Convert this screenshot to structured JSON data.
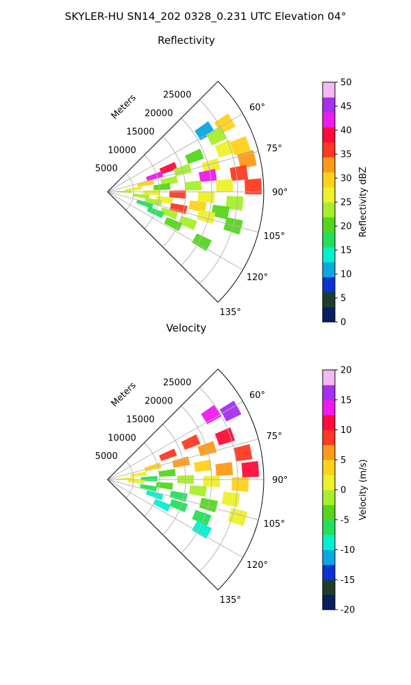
{
  "figure": {
    "title": "SKYLER-HU  SN14_202  0328_0.231 UTC Elevation 04°"
  },
  "chart_data": [
    {
      "type": "heatmap",
      "projection": "polar-sector",
      "title": "Reflectivity",
      "range_label": "Meters",
      "range_ticks": [
        5000,
        10000,
        15000,
        20000,
        25000
      ],
      "range_lim": [
        0,
        30000
      ],
      "azimuth_ticks": [
        "60°",
        "75°",
        "90°",
        "105°",
        "120°",
        "135°"
      ],
      "azimuth_lim": [
        45,
        135
      ],
      "grid": true,
      "colorbar": {
        "label": "Reflectivity dBZ",
        "range": [
          0,
          50
        ],
        "ticks": [
          "0",
          "5",
          "10",
          "15",
          "20",
          "25",
          "30",
          "35",
          "40",
          "45",
          "50"
        ]
      },
      "colormap_colors": [
        "#0b1f5e",
        "#1e3d2a",
        "#0a33d1",
        "#0aa8e0",
        "#00f0d0",
        "#23e05a",
        "#55d61e",
        "#a8ee2c",
        "#eef02a",
        "#ffd21a",
        "#ff9a16",
        "#ff3a22",
        "#ff0c3a",
        "#ee1aee",
        "#a82ef0",
        "#f6b8f0"
      ],
      "cells": [
        {
          "az": 58,
          "r": 22000,
          "v": 12
        },
        {
          "az": 60,
          "r": 26000,
          "v": 30
        },
        {
          "az": 63,
          "r": 23500,
          "v": 24
        },
        {
          "az": 68,
          "r": 18000,
          "v": 20
        },
        {
          "az": 69,
          "r": 12500,
          "v": 38
        },
        {
          "az": 70,
          "r": 24000,
          "v": 26
        },
        {
          "az": 71,
          "r": 27000,
          "v": 31
        },
        {
          "az": 72,
          "r": 9500,
          "v": 42
        },
        {
          "az": 74,
          "r": 15000,
          "v": 22
        },
        {
          "az": 76,
          "r": 20500,
          "v": 28
        },
        {
          "az": 77,
          "r": 27500,
          "v": 33
        },
        {
          "az": 78,
          "r": 7500,
          "v": 30
        },
        {
          "az": 80,
          "r": 12000,
          "v": 24
        },
        {
          "az": 81,
          "r": 19500,
          "v": 42
        },
        {
          "az": 82,
          "r": 25500,
          "v": 36
        },
        {
          "az": 84,
          "r": 5000,
          "v": 26
        },
        {
          "az": 85,
          "r": 10500,
          "v": 20
        },
        {
          "az": 86,
          "r": 16500,
          "v": 23
        },
        {
          "az": 87,
          "r": 22500,
          "v": 27
        },
        {
          "az": 88,
          "r": 28000,
          "v": 36
        },
        {
          "az": 90,
          "r": 3000,
          "v": 22
        },
        {
          "az": 91,
          "r": 8500,
          "v": 28
        },
        {
          "az": 92,
          "r": 13500,
          "v": 35
        },
        {
          "az": 93,
          "r": 19000,
          "v": 25
        },
        {
          "az": 95,
          "r": 24500,
          "v": 22
        },
        {
          "az": 97,
          "r": 6500,
          "v": 24
        },
        {
          "az": 98,
          "r": 11000,
          "v": 27
        },
        {
          "az": 99,
          "r": 17500,
          "v": 31
        },
        {
          "az": 100,
          "r": 22000,
          "v": 20
        },
        {
          "az": 102,
          "r": 9000,
          "v": 22
        },
        {
          "az": 103,
          "r": 14000,
          "v": 37
        },
        {
          "az": 104,
          "r": 19500,
          "v": 26
        },
        {
          "az": 105,
          "r": 25000,
          "v": 21
        },
        {
          "az": 108,
          "r": 7500,
          "v": 16
        },
        {
          "az": 109,
          "r": 12500,
          "v": 24
        },
        {
          "az": 111,
          "r": 16500,
          "v": 22
        },
        {
          "az": 113,
          "r": 10000,
          "v": 18
        },
        {
          "az": 116,
          "r": 14000,
          "v": 19
        },
        {
          "az": 118,
          "r": 20500,
          "v": 21
        }
      ]
    },
    {
      "type": "heatmap",
      "projection": "polar-sector",
      "title": "Velocity",
      "range_label": "Meters",
      "range_ticks": [
        5000,
        10000,
        15000,
        20000,
        25000
      ],
      "range_lim": [
        0,
        30000
      ],
      "azimuth_ticks": [
        "60°",
        "75°",
        "90°",
        "105°",
        "120°",
        "135°"
      ],
      "azimuth_lim": [
        45,
        135
      ],
      "grid": true,
      "colorbar": {
        "label": "Velocity (m/s)",
        "range": [
          -20,
          20
        ],
        "ticks": [
          "-20",
          "-15",
          "-10",
          "-5",
          "0",
          "5",
          "10",
          "15",
          "20"
        ]
      },
      "colormap_colors": [
        "#0b1f5e",
        "#1e3d2a",
        "#0a33d1",
        "#0aa8e0",
        "#00f0d0",
        "#23e05a",
        "#55d61e",
        "#a8ee2c",
        "#eef02a",
        "#ffd21a",
        "#ff9a16",
        "#ff3a22",
        "#ff0c3a",
        "#ee1aee",
        "#a82ef0",
        "#f6b8f0"
      ],
      "cells": [
        {
          "az": 58,
          "r": 23500,
          "v": 14
        },
        {
          "az": 61,
          "r": 27000,
          "v": 15
        },
        {
          "az": 66,
          "r": 17500,
          "v": 9
        },
        {
          "az": 68,
          "r": 12500,
          "v": 8
        },
        {
          "az": 70,
          "r": 24000,
          "v": 11
        },
        {
          "az": 73,
          "r": 20000,
          "v": 7
        },
        {
          "az": 75,
          "r": 9000,
          "v": 4
        },
        {
          "az": 77,
          "r": 14500,
          "v": 6
        },
        {
          "az": 79,
          "r": 26500,
          "v": 9
        },
        {
          "az": 81,
          "r": 6000,
          "v": 1
        },
        {
          "az": 82,
          "r": 18500,
          "v": 4
        },
        {
          "az": 84,
          "r": 11500,
          "v": -3
        },
        {
          "az": 85,
          "r": 22500,
          "v": 7
        },
        {
          "az": 86,
          "r": 27500,
          "v": 10
        },
        {
          "az": 88,
          "r": 3500,
          "v": 1
        },
        {
          "az": 89,
          "r": 8000,
          "v": -6
        },
        {
          "az": 90,
          "r": 15000,
          "v": -2
        },
        {
          "az": 91,
          "r": 20000,
          "v": 2
        },
        {
          "az": 92,
          "r": 25500,
          "v": 3
        },
        {
          "az": 94,
          "r": 5500,
          "v": 0
        },
        {
          "az": 96,
          "r": 11000,
          "v": -4
        },
        {
          "az": 97,
          "r": 17500,
          "v": -1
        },
        {
          "az": 99,
          "r": 24000,
          "v": 1
        },
        {
          "az": 101,
          "r": 8000,
          "v": -6
        },
        {
          "az": 103,
          "r": 14000,
          "v": -7
        },
        {
          "az": 104,
          "r": 20000,
          "v": -3
        },
        {
          "az": 106,
          "r": 26000,
          "v": 0
        },
        {
          "az": 108,
          "r": 9500,
          "v": -10
        },
        {
          "az": 110,
          "r": 14500,
          "v": -7
        },
        {
          "az": 112,
          "r": 19500,
          "v": -6
        },
        {
          "az": 115,
          "r": 11500,
          "v": -10
        },
        {
          "az": 118,
          "r": 20500,
          "v": -10
        }
      ]
    }
  ]
}
